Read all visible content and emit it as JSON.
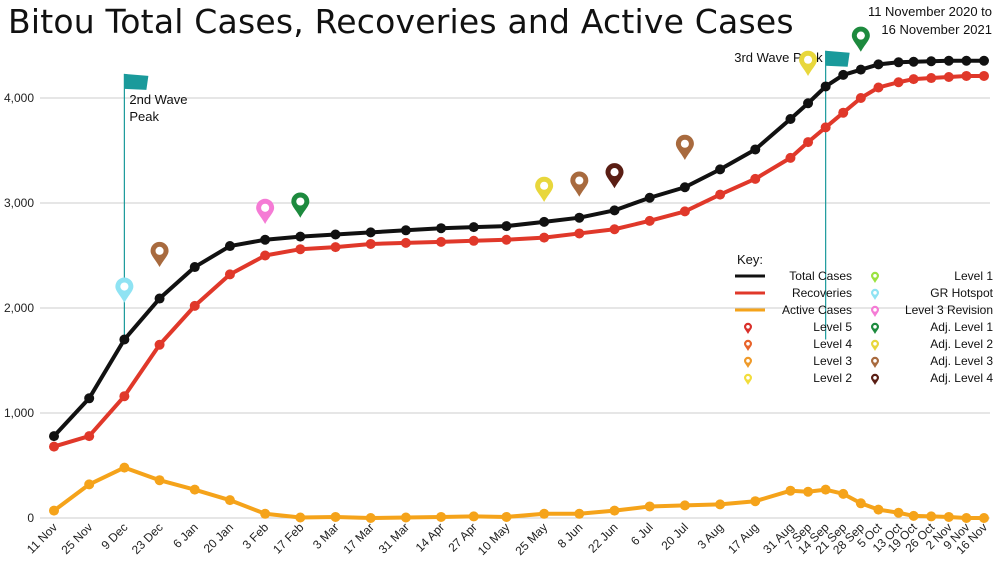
{
  "title": "Bitou Total Cases, Recoveries and Active Cases",
  "date_range": {
    "line1": "11 November 2020 to",
    "line2": "16 November 2021"
  },
  "colors": {
    "total": "#111111",
    "recoveries": "#e0382a",
    "active": "#f5a31a",
    "flag": "#1a9a9b",
    "grid": "#cccccc"
  },
  "chart_data": {
    "type": "line",
    "categories": [
      "11 Nov",
      "25 Nov",
      "9 Dec",
      "23 Dec",
      "6 Jan",
      "20 Jan",
      "3 Feb",
      "17 Feb",
      "3 Mar",
      "17 Mar",
      "31 Mar",
      "14 Apr",
      "27 Apr",
      "10 May",
      "25 May",
      "8 Jun",
      "22 Jun",
      "6 Jul",
      "20 Jul",
      "3 Aug",
      "17 Aug",
      "31 Aug",
      "7 Sep",
      "14 Sep",
      "21 Sep",
      "28 Sep",
      "5 Oct",
      "13 Oct",
      "19 Oct",
      "26 Oct",
      "2 Nov",
      "9 Nov",
      "16 Nov"
    ],
    "x": [
      0,
      14,
      28,
      42,
      56,
      70,
      84,
      98,
      112,
      126,
      140,
      154,
      167,
      180,
      195,
      209,
      223,
      237,
      251,
      265,
      279,
      293,
      300,
      307,
      314,
      321,
      328,
      336,
      342,
      349,
      356,
      363,
      370
    ],
    "series": [
      {
        "name": "Total Cases",
        "color": "#111111",
        "values": [
          780,
          1140,
          1700,
          2090,
          2390,
          2590,
          2650,
          2680,
          2700,
          2720,
          2740,
          2760,
          2770,
          2780,
          2820,
          2860,
          2930,
          3050,
          3150,
          3320,
          3510,
          3800,
          3950,
          4110,
          4220,
          4270,
          4320,
          4340,
          4345,
          4350,
          4355,
          4355,
          4355
        ]
      },
      {
        "name": "Recoveries",
        "color": "#e0382a",
        "values": [
          680,
          780,
          1160,
          1650,
          2020,
          2320,
          2500,
          2560,
          2580,
          2610,
          2620,
          2630,
          2640,
          2650,
          2670,
          2710,
          2750,
          2830,
          2920,
          3080,
          3230,
          3430,
          3580,
          3720,
          3860,
          4000,
          4100,
          4150,
          4180,
          4190,
          4200,
          4210,
          4210
        ]
      },
      {
        "name": "Active Cases",
        "color": "#f5a31a",
        "values": [
          70,
          320,
          480,
          360,
          270,
          170,
          40,
          5,
          10,
          0,
          5,
          10,
          15,
          10,
          40,
          40,
          70,
          110,
          120,
          130,
          160,
          260,
          250,
          270,
          230,
          140,
          80,
          50,
          20,
          15,
          10,
          0,
          0
        ]
      }
    ],
    "ylim": [
      0,
      4400
    ],
    "yticks": [
      0,
      1000,
      2000,
      3000,
      4000
    ],
    "ytick_labels": [
      "0",
      "1,000",
      "2,000",
      "3,000",
      "4,000"
    ],
    "grid": true,
    "legend_position": "right",
    "markers": [
      {
        "x": 28,
        "y": 2050,
        "level": "GR Hotspot"
      },
      {
        "x": 42,
        "y": 2390,
        "level": "Adj. Level 3"
      },
      {
        "x": 84,
        "y": 2800,
        "level": "Level 3 Revision"
      },
      {
        "x": 98,
        "y": 2860,
        "level": "Adj. Level 1"
      },
      {
        "x": 195,
        "y": 3010,
        "level": "Adj. Level 2"
      },
      {
        "x": 209,
        "y": 3060,
        "level": "Adj. Level 3"
      },
      {
        "x": 223,
        "y": 3140,
        "level": "Adj. Level 4"
      },
      {
        "x": 251,
        "y": 3410,
        "level": "Adj. Level 3"
      },
      {
        "x": 300,
        "y": 4210,
        "level": "Adj. Level 2"
      },
      {
        "x": 321,
        "y": 4440,
        "level": "Adj. Level 1"
      }
    ],
    "annotations": [
      {
        "text_lines": [
          "2nd Wave",
          "Peak"
        ],
        "x": 28,
        "y_top": 4230,
        "side": "right"
      },
      {
        "text_lines": [
          "3rd Wave Peak"
        ],
        "x": 307,
        "y_top": 4450,
        "side": "left"
      }
    ],
    "legend": {
      "title": "Key:",
      "lines": [
        {
          "label": "Total Cases",
          "color": "#111111"
        },
        {
          "label": "Recoveries",
          "color": "#e0382a"
        },
        {
          "label": "Active Cases",
          "color": "#f5a31a"
        }
      ],
      "left_markers": [
        {
          "label": "Level 5",
          "color": "#d9302b"
        },
        {
          "label": "Level 4",
          "color": "#e8632a"
        },
        {
          "label": "Level 3",
          "color": "#ef9a2a"
        },
        {
          "label": "Level 2",
          "color": "#f2dd3b"
        }
      ],
      "right_markers": [
        {
          "label": "Level 1",
          "color": "#9be23f"
        },
        {
          "label": "GR Hotspot",
          "color": "#8fe3f3"
        },
        {
          "label": "Level 3 Revision",
          "color": "#f57bd5"
        },
        {
          "label": "Adj. Level 1",
          "color": "#1d8a3e"
        },
        {
          "label": "Adj. Level 2",
          "color": "#e8d73c"
        },
        {
          "label": "Adj. Level 3",
          "color": "#a86a3e"
        },
        {
          "label": "Adj. Level 4",
          "color": "#5a1e14"
        }
      ]
    }
  }
}
